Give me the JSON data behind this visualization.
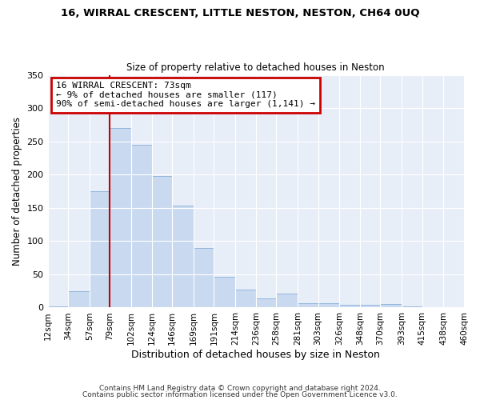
{
  "title": "16, WIRRAL CRESCENT, LITTLE NESTON, NESTON, CH64 0UQ",
  "subtitle": "Size of property relative to detached houses in Neston",
  "xlabel": "Distribution of detached houses by size in Neston",
  "ylabel": "Number of detached properties",
  "bar_color": "#c9d9f0",
  "bar_edge_color": "#8ab0d8",
  "background_color": "#e8eef8",
  "grid_color": "#ffffff",
  "annotation_box_title": "16 WIRRAL CRESCENT: 73sqm",
  "annotation_line1": "← 9% of detached houses are smaller (117)",
  "annotation_line2": "90% of semi-detached houses are larger (1,141) →",
  "annotation_box_color": "#cc0000",
  "vline_x": 79,
  "vline_color": "#cc0000",
  "bins": [
    12,
    34,
    57,
    79,
    102,
    124,
    146,
    169,
    191,
    214,
    236,
    258,
    281,
    303,
    326,
    348,
    370,
    393,
    415,
    438,
    460
  ],
  "bar_heights": [
    2,
    25,
    175,
    270,
    245,
    198,
    153,
    90,
    46,
    27,
    14,
    21,
    7,
    7,
    4,
    4,
    5,
    2,
    1,
    0
  ],
  "xlim": [
    12,
    460
  ],
  "ylim": [
    0,
    350
  ],
  "yticks": [
    0,
    50,
    100,
    150,
    200,
    250,
    300,
    350
  ],
  "xtick_labels": [
    "12sqm",
    "34sqm",
    "57sqm",
    "79sqm",
    "102sqm",
    "124sqm",
    "146sqm",
    "169sqm",
    "191sqm",
    "214sqm",
    "236sqm",
    "258sqm",
    "281sqm",
    "303sqm",
    "326sqm",
    "348sqm",
    "370sqm",
    "393sqm",
    "415sqm",
    "438sqm",
    "460sqm"
  ],
  "footer1": "Contains HM Land Registry data © Crown copyright and database right 2024.",
  "footer2": "Contains public sector information licensed under the Open Government Licence v3.0."
}
